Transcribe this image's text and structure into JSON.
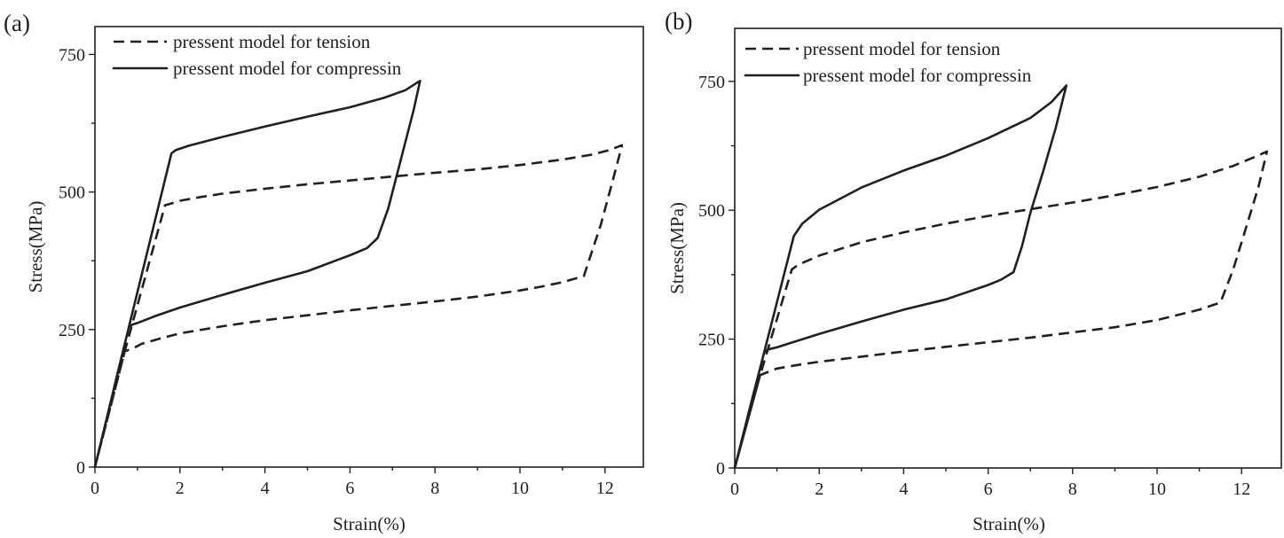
{
  "chart_data": [
    {
      "type": "line",
      "panel_label": "(a)",
      "xlabel": "Strain(%)",
      "ylabel": "Stress(MPa)",
      "xlim": [
        0,
        13
      ],
      "ylim": [
        0,
        800
      ],
      "xticks": [
        0,
        2,
        4,
        6,
        8,
        10,
        12
      ],
      "yticks": [
        0,
        250,
        500,
        750
      ],
      "grid": false,
      "legend_position": "top-left",
      "series": [
        {
          "name": "pressent model for tension",
          "style": "dashed",
          "x": [
            0,
            0.7,
            1.65,
            1.75,
            2.0,
            2.5,
            3.0,
            4.0,
            5.0,
            6.0,
            7.0,
            8.0,
            9.0,
            10.0,
            11.0,
            11.7,
            12.1,
            12.4,
            12.2,
            11.9,
            11.5,
            11.0,
            10.5,
            10.0,
            9.0,
            8.0,
            7.0,
            6.0,
            5.0,
            4.0,
            3.0,
            2.0,
            1.5,
            1.1,
            0.95,
            0.7,
            0.4,
            0
          ],
          "y": [
            0,
            210,
            476,
            478,
            484,
            491,
            497,
            506,
            514,
            521,
            528,
            535,
            541,
            549,
            559,
            568,
            576,
            585,
            526,
            440,
            347,
            336,
            328,
            321,
            310,
            301,
            293,
            285,
            276,
            267,
            256,
            243,
            233,
            224,
            218,
            210,
            120,
            0
          ]
        },
        {
          "name": "pressent model for compressin",
          "style": "solid",
          "x": [
            0,
            0.8,
            1.8,
            1.9,
            2.2,
            2.6,
            3.0,
            4.0,
            5.0,
            6.0,
            6.8,
            7.3,
            7.65,
            7.5,
            7.2,
            6.9,
            6.65,
            6.4,
            6.0,
            5.0,
            4.0,
            3.0,
            2.0,
            1.4,
            1.0,
            0.85,
            0.8,
            0.5,
            0
          ],
          "y": [
            0,
            255,
            570,
            576,
            584,
            592,
            600,
            619,
            637,
            654,
            671,
            685,
            702,
            650,
            560,
            470,
            416,
            398,
            385,
            356,
            335,
            313,
            290,
            274,
            262,
            258,
            255,
            160,
            0
          ]
        }
      ]
    },
    {
      "type": "line",
      "panel_label": "(b)",
      "xlabel": "Strain(%)",
      "ylabel": "Stress(MPa)",
      "xlim": [
        0,
        13
      ],
      "ylim": [
        0,
        850
      ],
      "xticks": [
        0,
        2,
        4,
        6,
        8,
        10,
        12
      ],
      "yticks": [
        0,
        250,
        500,
        750
      ],
      "grid": false,
      "legend_position": "top-left",
      "series": [
        {
          "name": "pressent model for tension",
          "style": "dashed",
          "x": [
            0,
            0.6,
            1.35,
            1.5,
            2.0,
            3.0,
            4.0,
            5.0,
            6.0,
            7.0,
            8.0,
            9.0,
            10.0,
            11.0,
            11.8,
            12.3,
            12.6,
            12.4,
            12.1,
            11.8,
            11.5,
            11.0,
            10.0,
            9.0,
            8.0,
            7.0,
            6.0,
            5.0,
            4.0,
            3.0,
            2.0,
            1.5,
            1.0,
            0.75,
            0.6,
            0.3,
            0
          ],
          "y": [
            0,
            180,
            385,
            394,
            412,
            438,
            457,
            474,
            489,
            502,
            515,
            529,
            545,
            565,
            586,
            603,
            614,
            545,
            465,
            385,
            321,
            307,
            287,
            273,
            263,
            253,
            244,
            235,
            226,
            216,
            206,
            200,
            193,
            185,
            180,
            90,
            0
          ]
        },
        {
          "name": "pressent model for compressin",
          "style": "solid",
          "x": [
            0,
            0.7,
            1.4,
            1.6,
            2.0,
            3.0,
            4.0,
            5.0,
            6.0,
            7.0,
            7.5,
            7.85,
            7.6,
            7.3,
            7.0,
            6.8,
            6.6,
            6.3,
            6.0,
            5.0,
            4.0,
            3.0,
            2.0,
            1.3,
            1.0,
            0.8,
            0.7,
            0.4,
            0
          ],
          "y": [
            0,
            225,
            450,
            474,
            501,
            544,
            577,
            606,
            640,
            679,
            710,
            742,
            660,
            575,
            495,
            430,
            380,
            365,
            355,
            327,
            307,
            284,
            260,
            242,
            234,
            230,
            225,
            130,
            0
          ]
        }
      ]
    }
  ]
}
